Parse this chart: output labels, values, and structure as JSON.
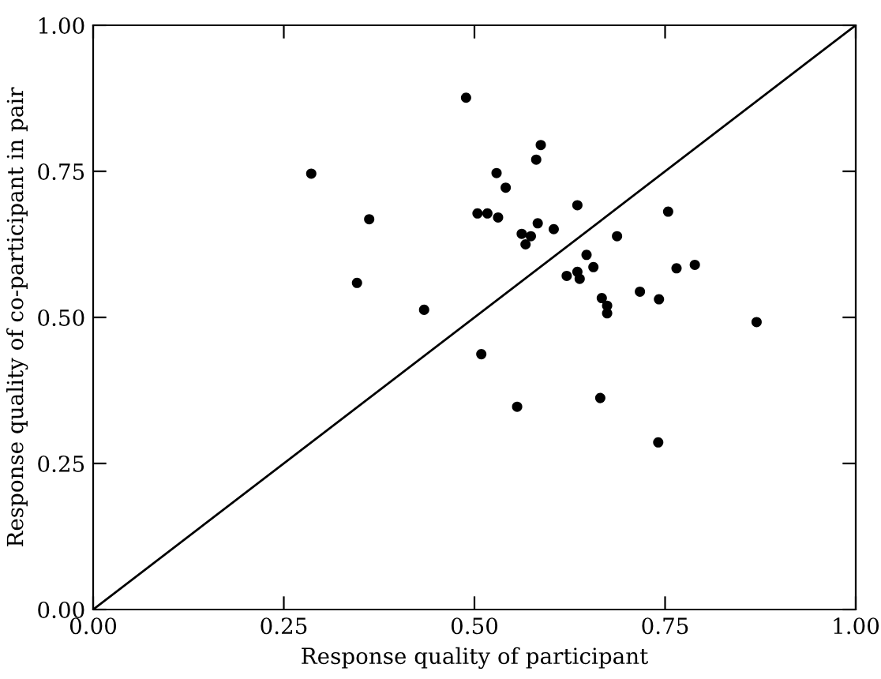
{
  "chart_data": {
    "type": "scatter",
    "xlabel": "Response quality of participant",
    "ylabel": "Response quality of co-participant in pair",
    "xlim": [
      0,
      1
    ],
    "ylim": [
      0,
      1
    ],
    "xticks": [
      {
        "value": 0,
        "label": "0.00"
      },
      {
        "value": 0.25,
        "label": "0.25"
      },
      {
        "value": 0.5,
        "label": "0.50"
      },
      {
        "value": 0.75,
        "label": "0.75"
      },
      {
        "value": 1,
        "label": "1.00"
      }
    ],
    "yticks": [
      {
        "value": 0,
        "label": "0.00"
      },
      {
        "value": 0.25,
        "label": "0.25"
      },
      {
        "value": 0.5,
        "label": "0.50"
      },
      {
        "value": 0.75,
        "label": "0.75"
      },
      {
        "value": 1,
        "label": "1.00"
      }
    ],
    "grid": false,
    "marker": "circle",
    "series": [
      {
        "color": "#000000",
        "x": [
          0.286,
          0.489,
          0.587,
          0.581,
          0.529,
          0.541,
          0.362,
          0.504,
          0.517,
          0.531,
          0.583,
          0.604,
          0.635,
          0.562,
          0.574,
          0.567,
          0.647,
          0.656,
          0.621,
          0.635,
          0.638,
          0.346,
          0.434,
          0.509,
          0.556,
          0.754,
          0.687,
          0.765,
          0.789,
          0.667,
          0.717,
          0.742,
          0.674,
          0.674,
          0.87,
          0.665,
          0.741
        ],
        "values": [
          0.746,
          0.876,
          0.795,
          0.77,
          0.747,
          0.722,
          0.668,
          0.678,
          0.678,
          0.671,
          0.661,
          0.651,
          0.692,
          0.643,
          0.639,
          0.625,
          0.607,
          0.586,
          0.571,
          0.578,
          0.566,
          0.559,
          0.513,
          0.437,
          0.347,
          0.681,
          0.639,
          0.584,
          0.59,
          0.533,
          0.544,
          0.531,
          0.52,
          0.507,
          0.492,
          0.362,
          0.286
        ]
      },
      {
        "type": "line",
        "color": "#000000",
        "marker": "none",
        "x": [
          0,
          1
        ],
        "values": [
          0,
          1
        ]
      }
    ]
  }
}
